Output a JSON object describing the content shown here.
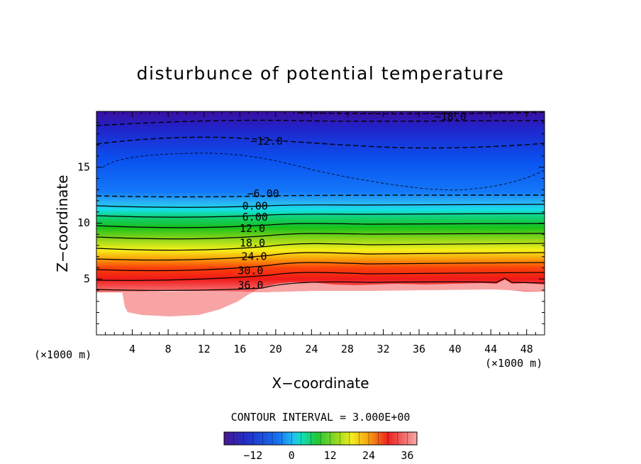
{
  "chart_data": {
    "type": "heatmap",
    "title": "disturbunce of potential temperature",
    "xlabel": "X−coordinate",
    "ylabel": "Z−coordinate",
    "x_unit_left": "(×1000 m)",
    "x_unit_right": "(×1000 m)",
    "xlim": [
      0,
      50
    ],
    "ylim": [
      0,
      20
    ],
    "x_ticks": [
      "4",
      "8",
      "12",
      "16",
      "20",
      "24",
      "28",
      "32",
      "36",
      "40",
      "44",
      "48"
    ],
    "x_tick_values": [
      4,
      8,
      12,
      16,
      20,
      24,
      28,
      32,
      36,
      40,
      44,
      48
    ],
    "y_ticks": [
      "5",
      "10",
      "15"
    ],
    "y_tick_values": [
      5,
      10,
      15
    ],
    "contour_interval_text": "CONTOUR INTERVAL = 3.000E+00",
    "contour_labels": [
      {
        "text": "−18.0",
        "value": -18,
        "x": 39.5,
        "z": 19.5
      },
      {
        "text": "−12.0",
        "value": -12,
        "x": 19.0,
        "z": 17.3
      },
      {
        "text": "−6.00",
        "value": -6,
        "x": 18.6,
        "z": 12.6
      },
      {
        "text": "0.00",
        "value": 0,
        "x": 17.7,
        "z": 11.5
      },
      {
        "text": "6.00",
        "value": 6,
        "x": 17.7,
        "z": 10.5
      },
      {
        "text": "12.0",
        "value": 12,
        "x": 17.4,
        "z": 9.5
      },
      {
        "text": "18.0",
        "value": 18,
        "x": 17.4,
        "z": 8.2
      },
      {
        "text": "24.0",
        "value": 24,
        "x": 17.6,
        "z": 7.0
      },
      {
        "text": "30.0",
        "value": 30,
        "x": 17.2,
        "z": 5.7
      },
      {
        "text": "36.0",
        "value": 36,
        "x": 17.2,
        "z": 4.4
      }
    ],
    "colorbar": {
      "min": -21,
      "max": 39,
      "tick_labels": [
        "−12",
        "0",
        "12",
        "24",
        "36"
      ],
      "tick_values": [
        -12,
        0,
        12,
        24,
        36
      ]
    }
  }
}
